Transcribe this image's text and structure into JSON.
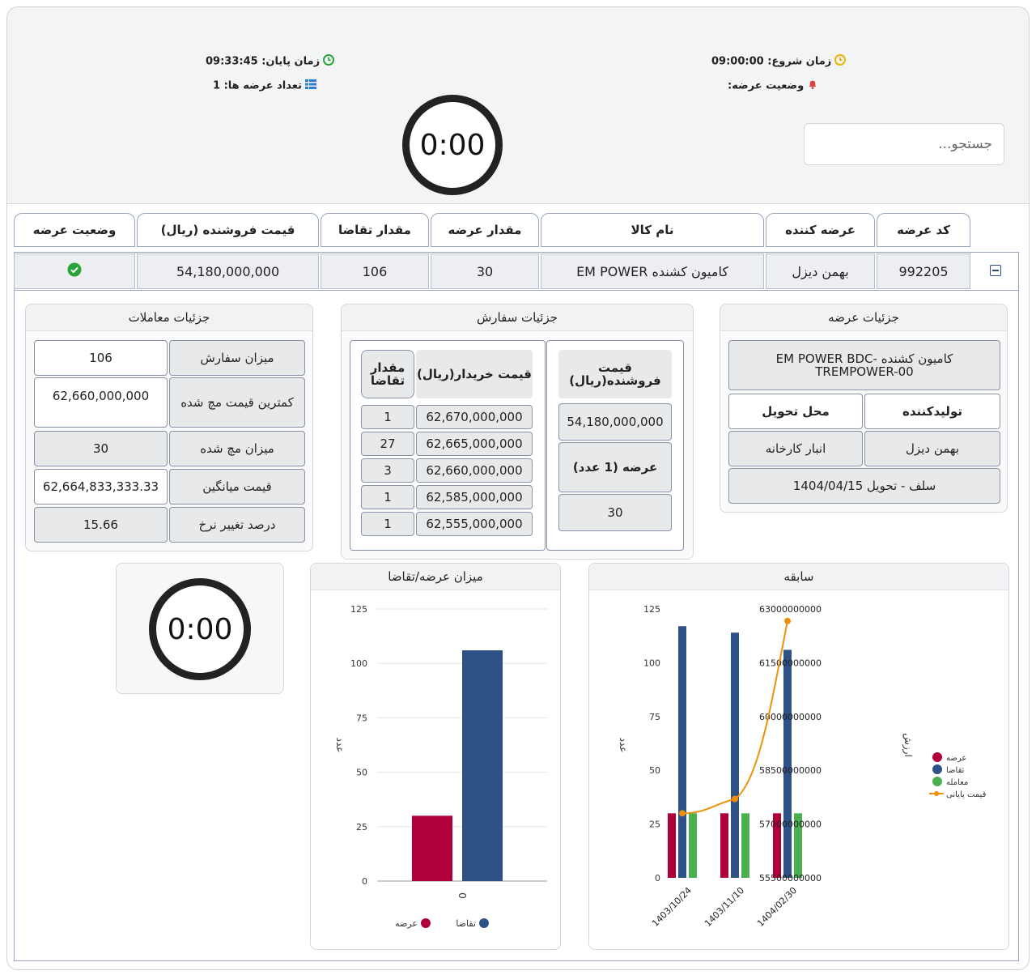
{
  "header": {
    "start_time_label": "زمان شروع:",
    "start_time": "09:00:00",
    "end_time_label": "زمان پایان:",
    "end_time": "09:33:45",
    "offer_status_label": "وضعیت عرضه:",
    "offer_count_label": "تعداد عرضه ها:",
    "offer_count": "1",
    "timer": "0:00",
    "search_placeholder": "جستجو..."
  },
  "colors": {
    "clock_start": "#e8b500",
    "clock_end": "#2aa33a",
    "bell": "#e0403c",
    "list": "#2e7bd6",
    "supply": "#b0003a",
    "demand": "#2e5286",
    "trade": "#4caf50",
    "final_price": "#f0900a"
  },
  "table": {
    "headers": [
      "کد عرضه",
      "عرضه کننده",
      "نام کالا",
      "مقدار عرضه",
      "مقدار تقاضا",
      "قیمت فروشنده (ریال)",
      "وضعیت عرضه"
    ],
    "row": {
      "code": "992205",
      "supplier": "بهمن دیزل",
      "product": "کامیون کشنده EM POWER",
      "supply_qty": "30",
      "demand_qty": "106",
      "seller_price": "54,180,000,000",
      "status_icon": "check-circle-icon"
    }
  },
  "offer_details": {
    "title": "جزئیات عرضه",
    "product_full": "کامیون کشنده -EM POWER BDC TREMPOWER-00",
    "producer_label": "تولیدکننده",
    "delivery_label": "محل تحویل",
    "producer": "بهمن دیزل",
    "delivery": "انبار کارخانه",
    "delivery_date": "سلف - تحویل 1404/04/15"
  },
  "order_details": {
    "title": "جزئیات سفارش",
    "demand_qty_header": "مقدار تقاضا",
    "buyer_price_header": "قیمت خریدار(ریال)",
    "seller_price_header": "قیمت فروشنده(ریال)",
    "seller_price": "54,180,000,000",
    "offer_label": "عرضه (1 عدد)",
    "offer_value": "30",
    "rows": [
      {
        "qty": "1",
        "price": "62,670,000,000"
      },
      {
        "qty": "27",
        "price": "62,665,000,000"
      },
      {
        "qty": "3",
        "price": "62,660,000,000"
      },
      {
        "qty": "1",
        "price": "62,585,000,000"
      },
      {
        "qty": "1",
        "price": "62,555,000,000"
      }
    ]
  },
  "trade_details": {
    "title": "جزئیات معاملات",
    "rows": [
      {
        "label": "میزان سفارش",
        "value": "106"
      },
      {
        "label": "کمترین قیمت مچ شده",
        "value": "62,660,000,000"
      },
      {
        "label": "میزان مچ شده",
        "value": "30"
      },
      {
        "label": "قیمت میانگین",
        "value": "62,664,833,333.33"
      },
      {
        "label": "درصد تغییر نرخ",
        "value": "15.66"
      }
    ]
  },
  "timer2": "0:00",
  "chart_data": [
    {
      "type": "bar",
      "title": "میزان عرضه/تقاضا",
      "ylabel": "عدد",
      "categories": [
        "0"
      ],
      "series": [
        {
          "name": "عرضه",
          "values": [
            30
          ]
        },
        {
          "name": "تقاضا",
          "values": [
            106
          ]
        }
      ],
      "ylim": [
        0,
        125
      ],
      "yticks": [
        "0",
        "25",
        "50",
        "75",
        "100",
        "125"
      ],
      "legend": "bottom"
    },
    {
      "type": "bar",
      "title": "سابقه",
      "ylabel": "عدد",
      "y2label": "ارزش",
      "categories": [
        "1403/10/24",
        "1403/11/10",
        "1404/02/30"
      ],
      "series": [
        {
          "name": "عرضه",
          "values": [
            30,
            30,
            30
          ]
        },
        {
          "name": "تقاضا",
          "values": [
            117,
            114,
            106
          ]
        },
        {
          "name": "معامله",
          "values": [
            30,
            30,
            30
          ]
        },
        {
          "name": "قیمت پایانی",
          "type": "line",
          "axis": "right",
          "values": [
            57300000000,
            57700000000,
            62664833333
          ]
        }
      ],
      "ylim": [
        0,
        125
      ],
      "yticks": [
        "0",
        "25",
        "50",
        "75",
        "100",
        "125"
      ],
      "y2lim": [
        55500000000,
        63000000000
      ],
      "y2ticks": [
        "55500000000",
        "57000000000",
        "58500000000",
        "60000000000",
        "61500000000",
        "63000000000"
      ],
      "legend": "right"
    }
  ]
}
